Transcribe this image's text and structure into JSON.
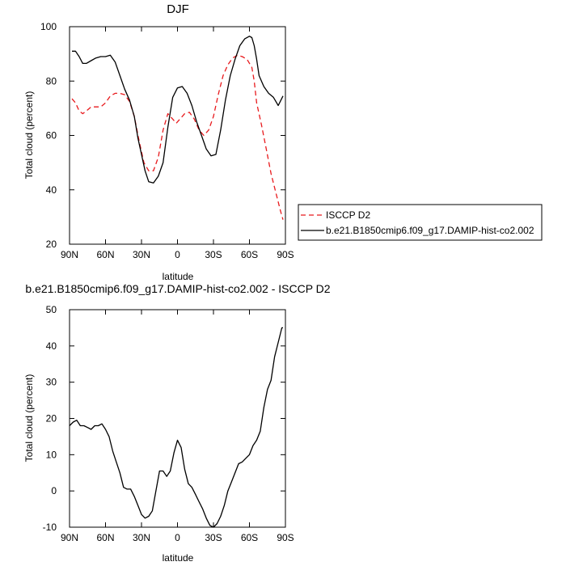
{
  "chart_data": [
    {
      "type": "line",
      "title": "DJF",
      "xlabel": "latitude",
      "ylabel": "Total cloud (percent)",
      "xlim": [
        90,
        -90
      ],
      "ylim": [
        20,
        100
      ],
      "x_ticks": [
        90,
        60,
        30,
        0,
        -30,
        -60,
        -90
      ],
      "x_tick_labels": [
        "90N",
        "60N",
        "30N",
        "0",
        "30S",
        "60S",
        "90S"
      ],
      "y_ticks": [
        20,
        40,
        60,
        80,
        100
      ],
      "y_tick_labels": [
        "20",
        "40",
        "60",
        "80",
        "100"
      ],
      "grid": false,
      "legend_position": "right",
      "series": [
        {
          "name": "ISCCP D2",
          "color": "#e8191c",
          "dash": "dashed",
          "x": [
            88,
            85,
            82,
            79,
            76,
            72,
            68,
            64,
            60,
            56,
            52,
            48,
            44,
            40,
            36,
            32,
            28,
            24,
            20,
            16,
            12,
            8,
            4,
            1,
            -2,
            -6,
            -10,
            -14,
            -18,
            -22,
            -26,
            -30,
            -34,
            -38,
            -42,
            -46,
            -50,
            -54,
            -58,
            -62,
            -64,
            -66,
            -70,
            -74,
            -78,
            -82,
            -86,
            -88
          ],
          "y": [
            73.5,
            72,
            69,
            68,
            69,
            70.5,
            70.5,
            70.5,
            72,
            74.5,
            75.5,
            75.5,
            75,
            72.5,
            67,
            58,
            50,
            47,
            47,
            52,
            62,
            68,
            66,
            64.5,
            66,
            68,
            68.5,
            66,
            62,
            60,
            62,
            67,
            75,
            82,
            86,
            88.5,
            89.5,
            89,
            88,
            85,
            80,
            72,
            64,
            55,
            46,
            39,
            32,
            29
          ]
        },
        {
          "name": "b.e21.B1850cmip6.f09_g17.DAMIP-hist-co2.002",
          "color": "#000000",
          "dash": "solid",
          "x": [
            88,
            85,
            82,
            79,
            76,
            72,
            68,
            64,
            60,
            56,
            52,
            48,
            44,
            40,
            36,
            33,
            30,
            27,
            24,
            20,
            16,
            12,
            8,
            4,
            0,
            -4,
            -8,
            -12,
            -16,
            -20,
            -24,
            -28,
            -32,
            -36,
            -40,
            -44,
            -48,
            -52,
            -56,
            -60,
            -62,
            -64,
            -66,
            -68,
            -72,
            -76,
            -80,
            -84,
            -88
          ],
          "y": [
            91,
            91,
            89,
            86.5,
            86.5,
            87.5,
            88.5,
            89,
            89,
            89.5,
            87,
            82,
            77,
            73,
            67,
            59,
            53,
            47,
            43,
            42.5,
            45,
            50,
            63,
            74,
            77.5,
            78,
            75.5,
            71,
            65,
            60,
            55,
            52.5,
            53,
            62,
            73,
            82,
            88,
            93,
            95.5,
            96.5,
            96,
            93,
            88,
            82,
            78,
            75.5,
            74,
            71,
            74.5
          ]
        }
      ]
    },
    {
      "type": "line",
      "title": "b.e21.B1850cmip6.f09_g17.DAMIP-hist-co2.002 - ISCCP D2",
      "xlabel": "latitude",
      "ylabel": "Total cloud (percent)",
      "xlim": [
        90,
        -90
      ],
      "ylim": [
        -10,
        50
      ],
      "x_ticks": [
        90,
        60,
        30,
        0,
        -30,
        -60,
        -90
      ],
      "x_tick_labels": [
        "90N",
        "60N",
        "30N",
        "0",
        "30S",
        "60S",
        "90S"
      ],
      "y_ticks": [
        -10,
        0,
        10,
        20,
        30,
        40,
        50
      ],
      "y_tick_labels": [
        "-10",
        "0",
        "10",
        "20",
        "30",
        "40",
        "50"
      ],
      "grid": false,
      "series": [
        {
          "color": "#000000",
          "dash": "solid",
          "x": [
            90,
            87,
            84,
            81,
            78,
            75,
            72,
            69,
            66,
            63,
            60,
            57,
            54,
            51,
            48,
            45,
            42,
            39,
            36,
            33,
            30,
            27,
            24,
            21,
            18,
            15,
            12,
            9,
            6,
            3,
            0,
            -3,
            -6,
            -9,
            -12,
            -15,
            -18,
            -21,
            -24,
            -27,
            -30,
            -33,
            -36,
            -39,
            -42,
            -45,
            -48,
            -51,
            -54,
            -57,
            -60,
            -63,
            -66,
            -69,
            -72,
            -75,
            -78,
            -81,
            -84,
            -87,
            -88
          ],
          "y": [
            18,
            19,
            19.5,
            18,
            18,
            17.5,
            17,
            18,
            18,
            18.5,
            17,
            15,
            11,
            8,
            5,
            1,
            0.5,
            0.5,
            -1.5,
            -4,
            -6.5,
            -7.5,
            -7,
            -5.5,
            0,
            5.5,
            5.5,
            4,
            5.5,
            10.5,
            14,
            12,
            6,
            2,
            1,
            -1,
            -3,
            -5,
            -7.5,
            -9.5,
            -10,
            -9,
            -7,
            -4,
            0,
            2.5,
            5,
            7.5,
            8,
            9,
            10,
            12.5,
            14,
            16.5,
            23,
            28,
            30.5,
            37,
            41,
            45,
            45
          ]
        }
      ]
    }
  ]
}
